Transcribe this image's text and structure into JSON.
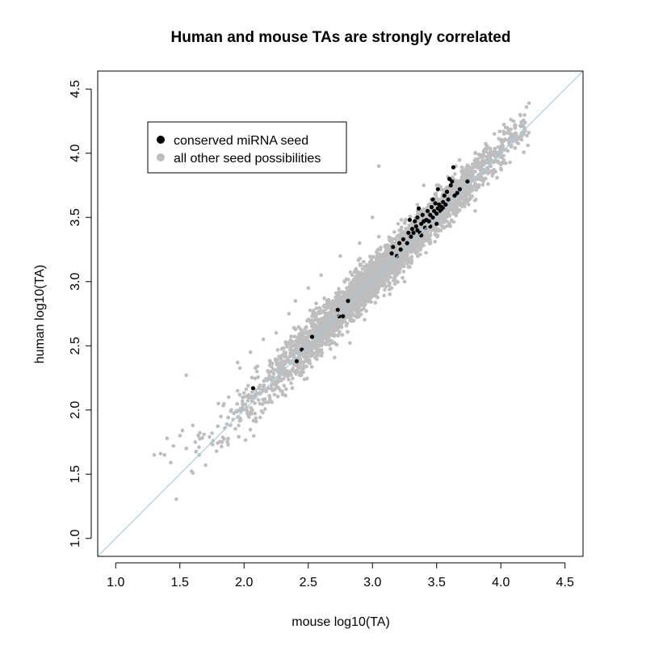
{
  "chart_data": {
    "type": "scatter",
    "title": "Human and mouse TAs are strongly correlated",
    "xlabel": "mouse log10(TA)",
    "ylabel": "human log10(TA)",
    "xlim": [
      0.86,
      4.64
    ],
    "ylim": [
      0.86,
      4.64
    ],
    "x_ticks": [
      "1.0",
      "1.5",
      "2.0",
      "2.5",
      "3.0",
      "3.5",
      "4.0",
      "4.5"
    ],
    "y_ticks": [
      "1.0",
      "1.5",
      "2.0",
      "2.5",
      "3.0",
      "3.5",
      "4.0",
      "4.5"
    ],
    "grid": false,
    "reference_line": {
      "slope": 1,
      "intercept": 0,
      "color": "#a6cee3"
    },
    "legend": {
      "placement": "top-left",
      "entries": [
        {
          "label": "conserved miRNA seed",
          "color": "#000000"
        },
        {
          "label": "all other seed possibilities",
          "color": "#bebebe"
        }
      ]
    },
    "series": [
      {
        "name": "all other seed possibilities",
        "color": "#bebebe",
        "density": "thousands of points along the diagonal",
        "points": [
          [
            1.3,
            1.65
          ],
          [
            1.35,
            1.66
          ],
          [
            1.38,
            1.65
          ],
          [
            1.4,
            1.78
          ],
          [
            1.45,
            1.72
          ],
          [
            1.5,
            1.8
          ],
          [
            1.52,
            1.84
          ],
          [
            1.55,
            1.7
          ],
          [
            1.6,
            1.88
          ],
          [
            1.62,
            1.75
          ],
          [
            1.65,
            1.65
          ],
          [
            1.7,
            1.57
          ],
          [
            1.75,
            1.82
          ],
          [
            1.8,
            2.05
          ],
          [
            1.82,
            1.95
          ],
          [
            1.85,
            1.86
          ],
          [
            1.88,
            2.1
          ],
          [
            1.9,
            2.0
          ],
          [
            1.95,
            2.15
          ],
          [
            2.0,
            2.1
          ],
          [
            1.95,
            2.37
          ],
          [
            1.55,
            2.27
          ],
          [
            2.05,
            2.45
          ],
          [
            2.1,
            2.3
          ],
          [
            2.12,
            2.18
          ],
          [
            2.15,
            2.55
          ],
          [
            2.2,
            2.35
          ],
          [
            2.22,
            2.25
          ],
          [
            2.25,
            2.6
          ],
          [
            2.3,
            2.48
          ],
          [
            2.35,
            2.75
          ],
          [
            2.38,
            2.32
          ],
          [
            2.4,
            2.85
          ],
          [
            2.45,
            2.55
          ],
          [
            2.5,
            2.95
          ],
          [
            2.55,
            2.7
          ],
          [
            2.58,
            2.45
          ],
          [
            2.6,
            3.05
          ],
          [
            2.65,
            2.85
          ],
          [
            2.7,
            2.62
          ],
          [
            2.75,
            3.2
          ],
          [
            2.8,
            2.95
          ],
          [
            2.85,
            2.75
          ],
          [
            2.9,
            3.3
          ],
          [
            2.95,
            3.05
          ],
          [
            3.0,
            2.9
          ],
          [
            3.05,
            3.35
          ],
          [
            3.1,
            3.2
          ],
          [
            3.15,
            2.95
          ],
          [
            3.2,
            3.45
          ],
          [
            3.25,
            3.3
          ],
          [
            3.3,
            3.15
          ],
          [
            3.35,
            3.6
          ],
          [
            3.4,
            3.45
          ],
          [
            3.45,
            3.3
          ],
          [
            3.5,
            3.75
          ],
          [
            3.55,
            3.6
          ],
          [
            3.6,
            3.45
          ],
          [
            3.65,
            3.9
          ],
          [
            3.7,
            3.75
          ],
          [
            3.75,
            3.6
          ],
          [
            3.8,
            4.0
          ],
          [
            3.85,
            3.9
          ],
          [
            3.9,
            3.85
          ],
          [
            3.95,
            4.15
          ],
          [
            4.0,
            4.05
          ],
          [
            4.05,
            4.2
          ],
          [
            4.1,
            4.25
          ],
          [
            4.15,
            4.3
          ],
          [
            4.2,
            4.36
          ],
          [
            4.22,
            4.39
          ],
          [
            3.05,
            3.9
          ],
          [
            3.0,
            3.5
          ],
          [
            3.4,
            3.75
          ],
          [
            3.25,
            3.0
          ],
          [
            2.3,
            2.12
          ],
          [
            2.2,
            2.1
          ],
          [
            3.8,
            3.55
          ]
        ]
      },
      {
        "name": "conserved miRNA seed",
        "color": "#000000",
        "points": [
          [
            2.07,
            2.17
          ],
          [
            2.41,
            2.38
          ],
          [
            2.45,
            2.47
          ],
          [
            2.53,
            2.57
          ],
          [
            2.73,
            2.78
          ],
          [
            2.74,
            2.73
          ],
          [
            2.77,
            2.73
          ],
          [
            2.81,
            2.85
          ],
          [
            3.15,
            3.22
          ],
          [
            3.16,
            3.27
          ],
          [
            3.19,
            3.2
          ],
          [
            3.21,
            3.3
          ],
          [
            3.22,
            3.25
          ],
          [
            3.24,
            3.33
          ],
          [
            3.27,
            3.3
          ],
          [
            3.28,
            3.38
          ],
          [
            3.29,
            3.48
          ],
          [
            3.3,
            3.35
          ],
          [
            3.31,
            3.41
          ],
          [
            3.32,
            3.38
          ],
          [
            3.33,
            3.47
          ],
          [
            3.34,
            3.43
          ],
          [
            3.35,
            3.5
          ],
          [
            3.35,
            3.4
          ],
          [
            3.36,
            3.57
          ],
          [
            3.37,
            3.38
          ],
          [
            3.38,
            3.45
          ],
          [
            3.39,
            3.52
          ],
          [
            3.4,
            3.47
          ],
          [
            3.41,
            3.42
          ],
          [
            3.42,
            3.48
          ],
          [
            3.43,
            3.55
          ],
          [
            3.44,
            3.47
          ],
          [
            3.45,
            3.52
          ],
          [
            3.46,
            3.58
          ],
          [
            3.47,
            3.5
          ],
          [
            3.47,
            3.64
          ],
          [
            3.48,
            3.55
          ],
          [
            3.49,
            3.61
          ],
          [
            3.5,
            3.53
          ],
          [
            3.51,
            3.57
          ],
          [
            3.51,
            3.72
          ],
          [
            3.52,
            3.6
          ],
          [
            3.53,
            3.55
          ],
          [
            3.54,
            3.58
          ],
          [
            3.55,
            3.62
          ],
          [
            3.56,
            3.67
          ],
          [
            3.57,
            3.6
          ],
          [
            3.58,
            3.7
          ],
          [
            3.59,
            3.64
          ],
          [
            3.6,
            3.8
          ],
          [
            3.61,
            3.75
          ],
          [
            3.63,
            3.89
          ],
          [
            3.64,
            3.67
          ],
          [
            3.66,
            3.69
          ],
          [
            3.68,
            3.72
          ],
          [
            3.74,
            3.78
          ],
          [
            3.5,
            3.45
          ],
          [
            3.45,
            3.43
          ],
          [
            3.38,
            3.36
          ],
          [
            3.62,
            3.78
          ],
          [
            3.55,
            3.57
          ]
        ]
      }
    ]
  }
}
